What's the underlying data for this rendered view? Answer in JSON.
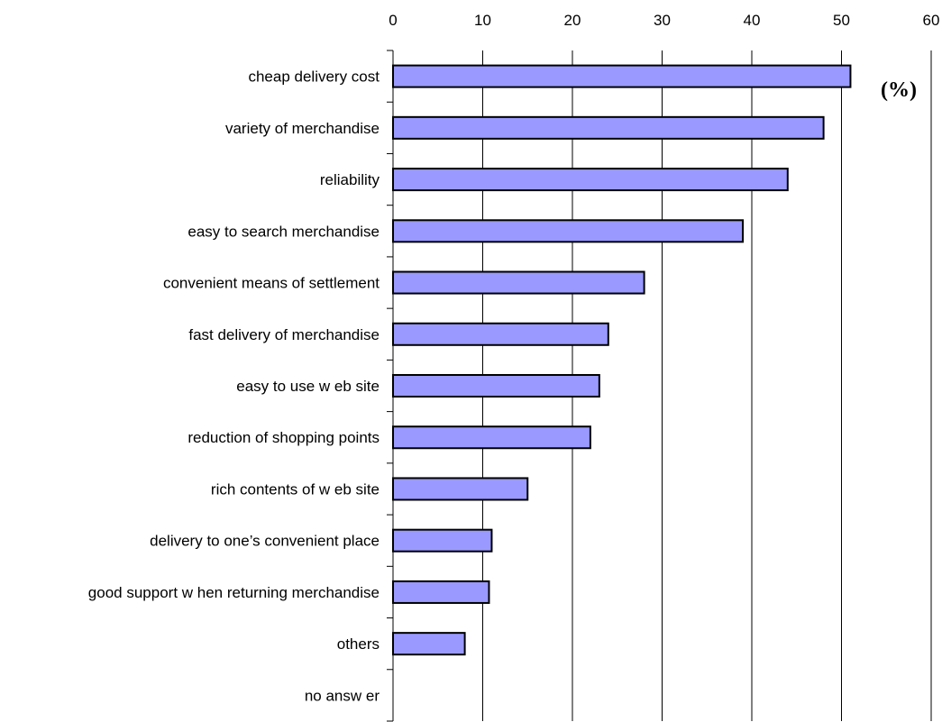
{
  "chart_data": {
    "type": "bar",
    "orientation": "horizontal",
    "unit_label": "(%)",
    "categories": [
      "cheap delivery cost",
      "variety of merchandise",
      "reliability",
      "easy to search merchandise",
      "convenient means of settlement",
      "fast delivery of merchandise",
      "easy to use w eb site",
      "reduction of shopping points",
      "rich contents of w eb site",
      "delivery to one’s convenient place",
      "good support w hen returning merchandise",
      "others",
      "no answ er"
    ],
    "values": [
      51,
      48,
      44,
      39,
      28,
      24,
      23,
      22,
      15,
      11,
      10.7,
      8,
      0
    ],
    "xlim": [
      0,
      60
    ],
    "xticks": [
      0,
      10,
      20,
      30,
      40,
      50,
      60
    ],
    "x_axis_position": "top",
    "grid": true,
    "bar_color": "#9999ff",
    "bar_edge_color": "#000000"
  }
}
